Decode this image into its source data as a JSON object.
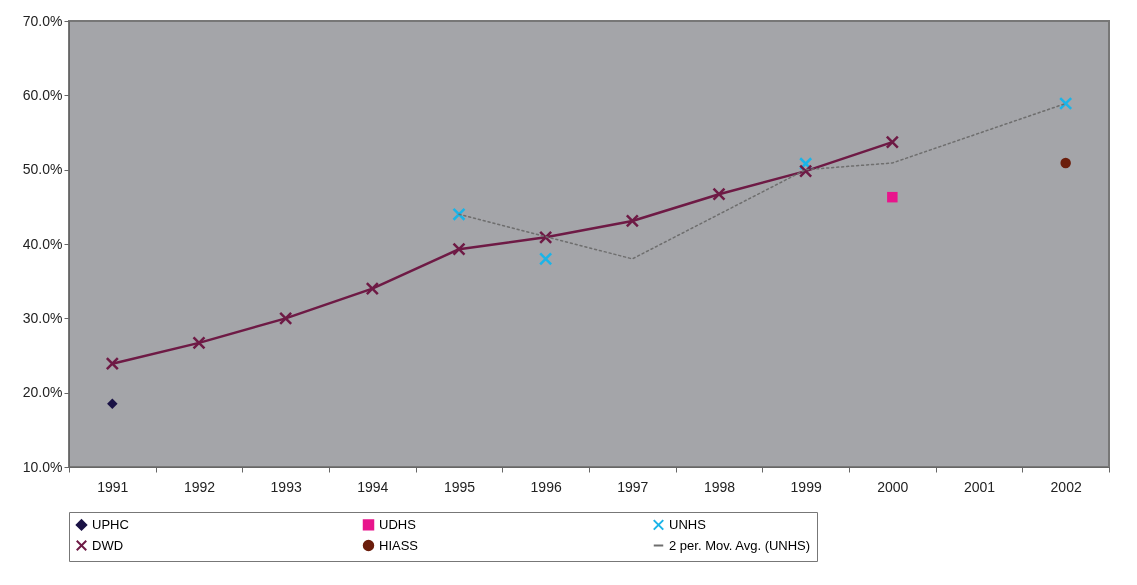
{
  "chart_data": {
    "type": "line",
    "categories": [
      "1991",
      "1992",
      "1993",
      "1994",
      "1995",
      "1996",
      "1997",
      "1998",
      "1999",
      "2000",
      "2001",
      "2002"
    ],
    "ylim": [
      10,
      70
    ],
    "yticks": [
      {
        "value": 10,
        "label": "10.0%"
      },
      {
        "value": 20,
        "label": "20.0%"
      },
      {
        "value": 30,
        "label": "30.0%"
      },
      {
        "value": 40,
        "label": "40.0%"
      },
      {
        "value": 50,
        "label": "50.0%"
      },
      {
        "value": 60,
        "label": "60.0%"
      },
      {
        "value": 70,
        "label": "70.0%"
      }
    ],
    "grid": false,
    "legend": "bottom",
    "series": [
      {
        "name": "UPHC",
        "color": "#1a1245",
        "marker": "diamond",
        "values": [
          18.5,
          null,
          null,
          null,
          null,
          null,
          null,
          null,
          null,
          null,
          null,
          null
        ]
      },
      {
        "name": "UDHS",
        "color": "#e8158c",
        "marker": "square",
        "values": [
          null,
          null,
          null,
          null,
          null,
          null,
          null,
          null,
          null,
          46.3,
          null,
          null
        ]
      },
      {
        "name": "UNHS",
        "type": "scatter",
        "color": "#1ab4e8",
        "marker": "cross",
        "values": [
          null,
          null,
          null,
          null,
          44.0,
          38.0,
          null,
          null,
          50.8,
          null,
          null,
          58.9
        ]
      },
      {
        "name": "DWD",
        "color": "#6e1a45",
        "marker": "cross",
        "values": [
          23.9,
          26.7,
          30.0,
          34.0,
          39.3,
          40.9,
          43.1,
          46.7,
          49.8,
          53.7,
          null,
          null
        ]
      },
      {
        "name": "HIASS",
        "color": "#6b1e0c",
        "marker": "circle",
        "values": [
          null,
          null,
          null,
          null,
          null,
          null,
          null,
          null,
          null,
          null,
          null,
          50.9
        ]
      },
      {
        "name": "2 per. Mov. Avg. (UNHS)",
        "color": "#6e6e6e",
        "marker": "none",
        "line_style": "dotted",
        "values": [
          null,
          null,
          null,
          null,
          44.0,
          41.0,
          38.0,
          null,
          50.0,
          50.9,
          null,
          58.9
        ]
      }
    ]
  }
}
